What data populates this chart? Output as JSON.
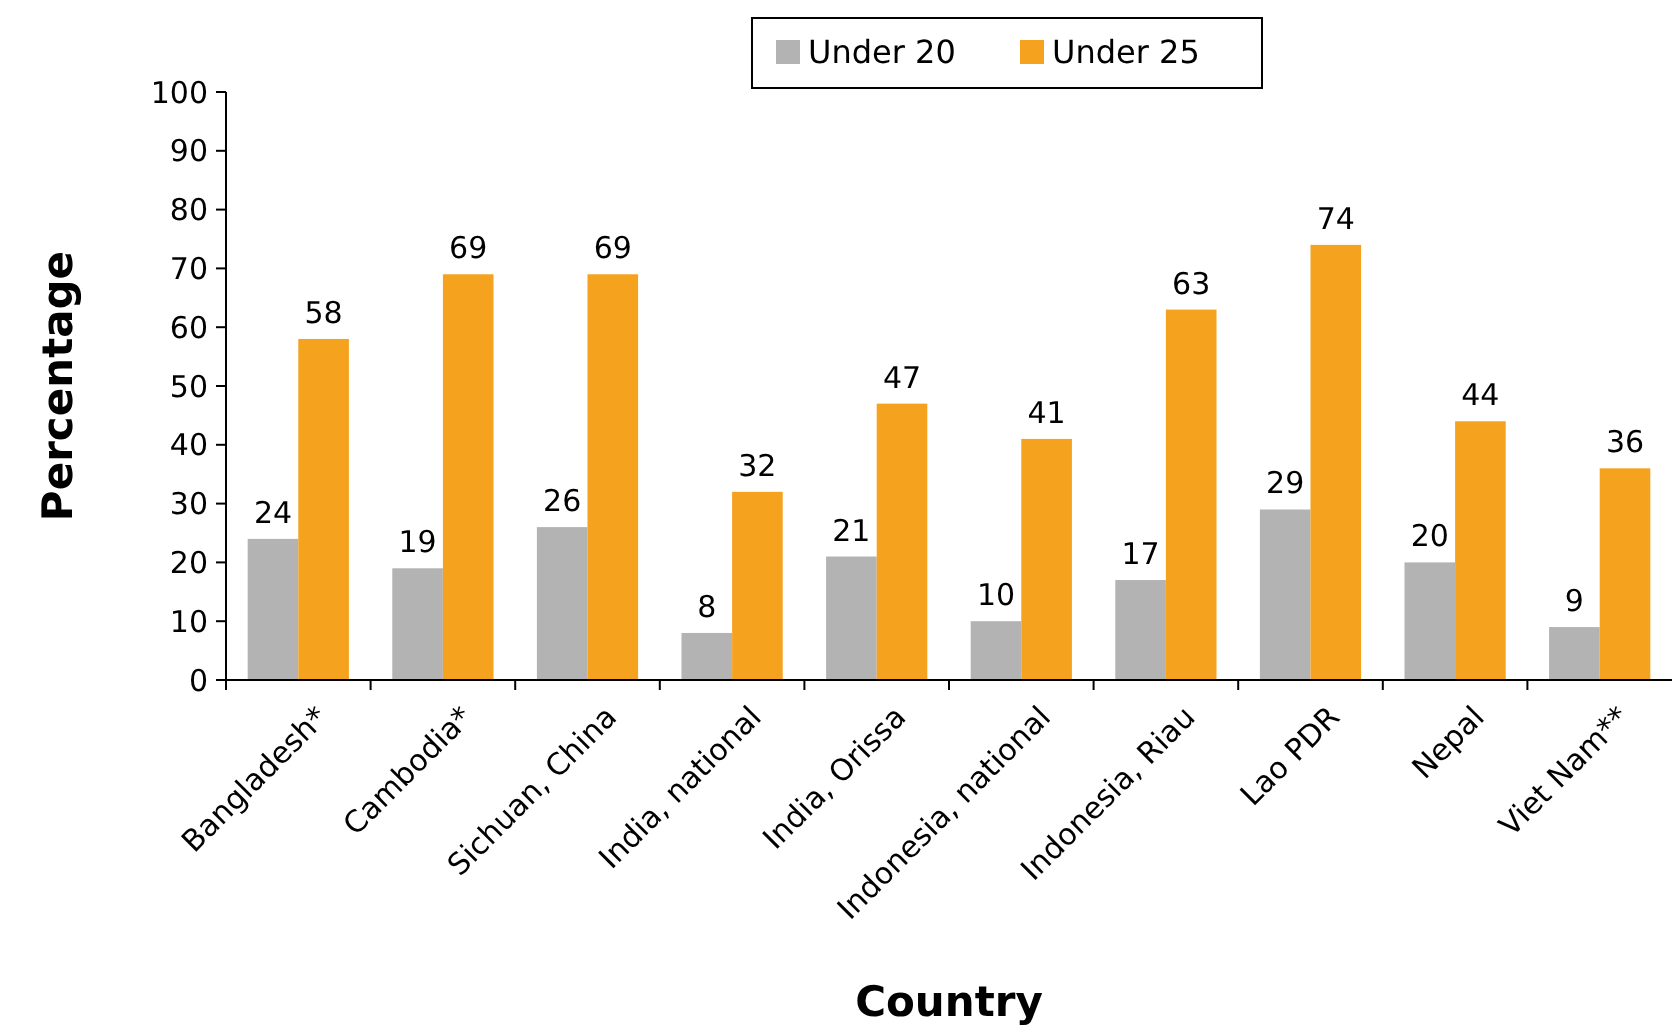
{
  "chart_data": {
    "type": "bar",
    "xlabel": "Country",
    "ylabel": "Percentage",
    "categories": [
      "Bangladesh*",
      "Cambodia*",
      "Sichuan, China",
      "India, national",
      "India, Orissa",
      "Indonesia, national",
      "Indonesia, Riau",
      "Lao PDR",
      "Nepal",
      "Viet Nam**"
    ],
    "series": [
      {
        "name": "Under 20",
        "color": "#b3b3b3",
        "values": [
          24,
          19,
          26,
          8,
          21,
          10,
          17,
          29,
          20,
          9
        ]
      },
      {
        "name": "Under 25",
        "color": "#f5a21f",
        "values": [
          58,
          69,
          69,
          32,
          47,
          41,
          63,
          74,
          44,
          36
        ]
      }
    ],
    "ylim": [
      0,
      100
    ],
    "yticks": [
      0,
      10,
      20,
      30,
      40,
      50,
      60,
      70,
      80,
      90,
      100
    ],
    "data_labels": true,
    "legend": "top",
    "grid": false
  }
}
